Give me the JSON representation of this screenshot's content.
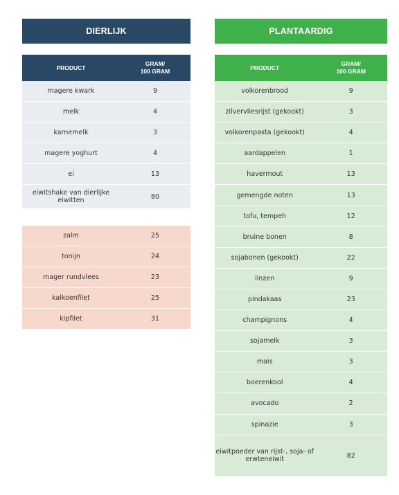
{
  "animal": {
    "title": "DIERLIJK",
    "header": {
      "product": "PRODUCT",
      "gram": "GRAM/\n100 GRAM"
    },
    "rows": [
      {
        "product": "magere kwark",
        "value": "9"
      },
      {
        "product": "melk",
        "value": "4"
      },
      {
        "product": "karnemelk",
        "value": "3"
      },
      {
        "product": "magere yoghurt",
        "value": "4"
      },
      {
        "product": "ei",
        "value": "13"
      },
      {
        "product": "eiwitshake van dierlijke eiwitten",
        "value": "80"
      }
    ],
    "fish_rows": [
      {
        "product": "zalm",
        "value": "25"
      },
      {
        "product": "tonijn",
        "value": "24"
      },
      {
        "product": "mager rundvlees",
        "value": "23"
      },
      {
        "product": "kalkoenfilet",
        "value": "25"
      },
      {
        "product": "kipfilet",
        "value": "31"
      }
    ]
  },
  "plant": {
    "title": "PLANTAARDIG",
    "header": {
      "product": "PRODUCT",
      "gram": "GRAM/\n100 GRAM"
    },
    "rows": [
      {
        "product": "volkorenbrood",
        "value": "9"
      },
      {
        "product": "zilvervliesrijst (gekookt)",
        "value": "3"
      },
      {
        "product": "volkorenpasta (gekookt)",
        "value": "4"
      },
      {
        "product": "aardappelen",
        "value": "1"
      },
      {
        "product": "havermout",
        "value": "13"
      },
      {
        "product": "gemengde noten",
        "value": "13"
      },
      {
        "product": "tofu, tempeh",
        "value": "12"
      },
      {
        "product": "bruine bonen",
        "value": "8"
      },
      {
        "product": "sojabonen (gekookt)",
        "value": "22"
      },
      {
        "product": "linzen",
        "value": "9"
      },
      {
        "product": "pindakaas",
        "value": "23"
      },
      {
        "product": "champignons",
        "value": "4"
      },
      {
        "product": "sojamelk",
        "value": "3"
      },
      {
        "product": "mais",
        "value": "3"
      },
      {
        "product": "boerenkool",
        "value": "4"
      },
      {
        "product": "avocado",
        "value": "2"
      },
      {
        "product": "spinazie",
        "value": "3"
      },
      {
        "product": "eiwitpoeder van rijst-, soja- of erwteneiwit",
        "value": "82"
      }
    ]
  },
  "colors": {
    "animal_header": "#284865",
    "plant_header": "#3fb04a",
    "animal_row": "#e9edf2",
    "fish_row": "#f7d8cc",
    "plant_row": "#d8ebd6"
  }
}
